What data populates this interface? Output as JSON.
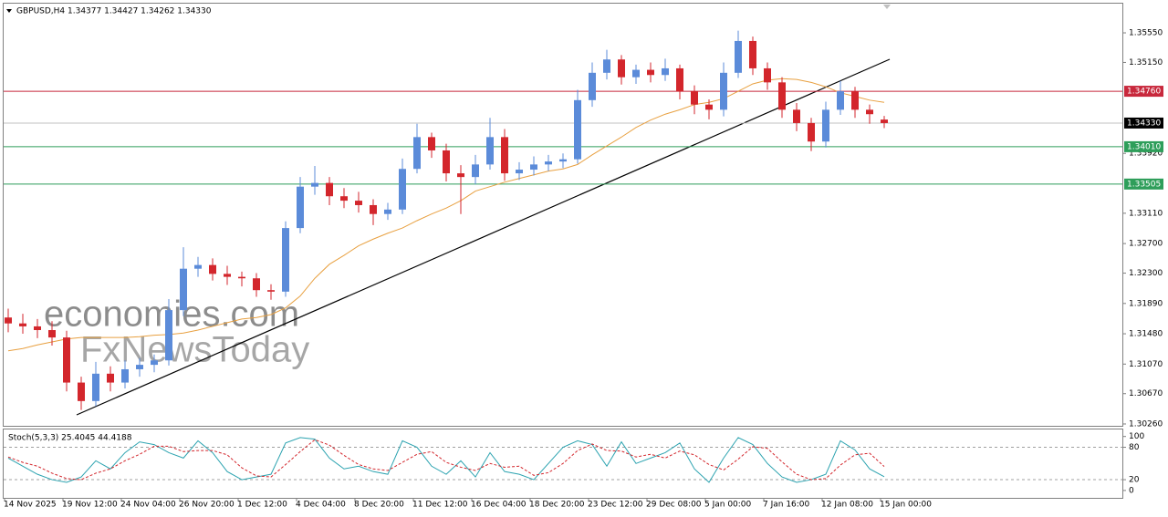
{
  "chart_data": [
    {
      "type": "candlestick",
      "title": "GBPUSD,H4  1.34377 1.34427 1.34262 1.34330",
      "watermark": [
        "economies.com",
        "FxNewsToday"
      ],
      "categories": [
        "14 Nov 2025",
        null,
        null,
        null,
        "19 Nov 12:00",
        null,
        null,
        null,
        "24 Nov 04:00",
        null,
        null,
        null,
        "26 Nov 20:00",
        null,
        null,
        null,
        "1 Dec 12:00",
        null,
        null,
        null,
        "4 Dec 04:00",
        null,
        null,
        null,
        "8 Dec 20:00",
        null,
        null,
        null,
        "11 Dec 12:00",
        null,
        null,
        null,
        "16 Dec 04:00",
        null,
        null,
        null,
        "18 Dec 20:00",
        null,
        null,
        null,
        "23 Dec 12:00",
        null,
        null,
        null,
        "29 Dec 08:00",
        null,
        null,
        null,
        "5 Jan 00:00",
        null,
        null,
        null,
        "7 Jan 16:00",
        null,
        null,
        null,
        "12 Jan 08:00",
        null,
        null,
        null,
        "15 Jan 00:00"
      ],
      "open": [
        1.317,
        1.3162,
        1.3158,
        1.3153,
        1.3143,
        1.3082,
        1.3057,
        1.3094,
        1.3082,
        1.31,
        1.3106,
        1.3112,
        1.318,
        1.3236,
        1.3241,
        1.3229,
        1.3225,
        1.3223,
        1.3207,
        1.3205,
        1.3291,
        1.3347,
        1.3352,
        1.3334,
        1.3328,
        1.3322,
        1.331,
        1.3316,
        1.3371,
        1.3414,
        1.3396,
        1.3365,
        1.336,
        1.3377,
        1.3414,
        1.3365,
        1.337,
        1.3377,
        1.3381,
        1.3384,
        1.3464,
        1.3501,
        1.3519,
        1.3495,
        1.3505,
        1.3498,
        1.3507,
        1.3476,
        1.3458,
        1.3451,
        1.3501,
        1.3544,
        1.3507,
        1.3488,
        1.3451,
        1.3433,
        1.3408,
        1.3451,
        1.3476,
        1.3451,
        1.34377
      ],
      "high": [
        1.3182,
        1.3175,
        1.3168,
        1.3165,
        1.3152,
        1.309,
        1.311,
        1.3104,
        1.3112,
        1.3115,
        1.312,
        1.3195,
        1.3265,
        1.3252,
        1.325,
        1.324,
        1.3232,
        1.323,
        1.3215,
        1.33,
        1.336,
        1.3375,
        1.336,
        1.3345,
        1.334,
        1.333,
        1.3325,
        1.3385,
        1.3432,
        1.342,
        1.3405,
        1.3376,
        1.339,
        1.344,
        1.3425,
        1.338,
        1.3388,
        1.339,
        1.3392,
        1.3478,
        1.3515,
        1.3532,
        1.3525,
        1.3512,
        1.3515,
        1.352,
        1.3512,
        1.3484,
        1.3465,
        1.3515,
        1.3558,
        1.355,
        1.3515,
        1.3495,
        1.346,
        1.344,
        1.3462,
        1.349,
        1.3482,
        1.3458,
        1.34427
      ],
      "low": [
        1.315,
        1.3148,
        1.3142,
        1.3132,
        1.307,
        1.3045,
        1.305,
        1.307,
        1.3074,
        1.309,
        1.3096,
        1.3105,
        1.3172,
        1.3225,
        1.322,
        1.3214,
        1.3212,
        1.3198,
        1.3194,
        1.3198,
        1.3284,
        1.3336,
        1.3322,
        1.3318,
        1.3312,
        1.3295,
        1.3302,
        1.331,
        1.3365,
        1.3386,
        1.3354,
        1.331,
        1.335,
        1.337,
        1.3355,
        1.3356,
        1.3362,
        1.3368,
        1.3372,
        1.3378,
        1.3455,
        1.3492,
        1.3485,
        1.3486,
        1.3488,
        1.349,
        1.3465,
        1.3445,
        1.3438,
        1.3442,
        1.3494,
        1.3498,
        1.3478,
        1.344,
        1.3422,
        1.3395,
        1.34,
        1.3444,
        1.344,
        1.3432,
        1.34262
      ],
      "close": [
        1.3162,
        1.3158,
        1.3153,
        1.3143,
        1.3082,
        1.3057,
        1.3094,
        1.3082,
        1.31,
        1.3106,
        1.3112,
        1.318,
        1.3236,
        1.3241,
        1.3229,
        1.3225,
        1.3223,
        1.3207,
        1.3205,
        1.3291,
        1.3347,
        1.3352,
        1.3334,
        1.3328,
        1.3322,
        1.331,
        1.3316,
        1.3371,
        1.3414,
        1.3396,
        1.3365,
        1.336,
        1.3377,
        1.3414,
        1.3365,
        1.337,
        1.3377,
        1.3381,
        1.3384,
        1.3464,
        1.3501,
        1.3519,
        1.3495,
        1.3505,
        1.3498,
        1.3507,
        1.3476,
        1.3458,
        1.3451,
        1.3501,
        1.3544,
        1.3507,
        1.3488,
        1.3451,
        1.3433,
        1.3408,
        1.3451,
        1.3476,
        1.3451,
        1.3445,
        1.3433
      ],
      "up_color": "#5b8bd9",
      "down_color": "#d3262c",
      "ma": {
        "color": "#e8a040",
        "values": [
          1.3125,
          1.3128,
          1.3133,
          1.3137,
          1.3141,
          1.3143,
          1.3143,
          1.3143,
          1.3143,
          1.3144,
          1.3146,
          1.3147,
          1.3149,
          1.3153,
          1.3158,
          1.3163,
          1.3168,
          1.317,
          1.3174,
          1.3183,
          1.3199,
          1.3223,
          1.3242,
          1.3254,
          1.3267,
          1.3276,
          1.3284,
          1.3291,
          1.3301,
          1.331,
          1.3318,
          1.3328,
          1.3341,
          1.3347,
          1.3353,
          1.3358,
          1.3363,
          1.3368,
          1.3371,
          1.3377,
          1.339,
          1.3402,
          1.3414,
          1.3427,
          1.3437,
          1.3445,
          1.3451,
          1.3458,
          1.3461,
          1.3466,
          1.3476,
          1.3486,
          1.3491,
          1.3493,
          1.3492,
          1.3488,
          1.3482,
          1.3474,
          1.3469,
          1.3464,
          1.3461
        ]
      },
      "levels": [
        {
          "value": 1.3476,
          "label": "1.34760",
          "color": "#c8283c",
          "text_color": "#ffffff"
        },
        {
          "value": 1.3433,
          "label": "1.34330",
          "color": "#000000",
          "text_color": "#ffffff",
          "line_color": "#c0c0c0"
        },
        {
          "value": 1.3401,
          "label": "1.34010",
          "color": "#2e9e5a",
          "text_color": "#ffffff"
        },
        {
          "value": 1.33505,
          "label": "1.33505",
          "color": "#2e9e5a",
          "text_color": "#ffffff"
        }
      ],
      "ylim": [
        1.30235,
        1.35945
      ],
      "yticks": [
        {
          "value": 1.3555,
          "label": "1.35550"
        },
        {
          "value": 1.3515,
          "label": "1.35150"
        },
        {
          "value": 1.3392,
          "label": "1.33920"
        },
        {
          "value": 1.3311,
          "label": "1.33110"
        },
        {
          "value": 1.327,
          "label": "1.32700"
        },
        {
          "value": 1.323,
          "label": "1.32300"
        },
        {
          "value": 1.3189,
          "label": "1.31890"
        },
        {
          "value": 1.3148,
          "label": "1.31480"
        },
        {
          "value": 1.3107,
          "label": "1.31070"
        },
        {
          "value": 1.3067,
          "label": "1.30670"
        },
        {
          "value": 1.3026,
          "label": "1.30260"
        }
      ]
    },
    {
      "type": "stochastic",
      "title": "Stoch(5,3,3) 25.4045 44.4188",
      "ylim": [
        -12,
        113
      ],
      "yticks": [
        100,
        80,
        20,
        0
      ],
      "levels": [
        80,
        20
      ],
      "series": [
        {
          "color": "#2ca3b0",
          "dash": false,
          "values": [
            60,
            45,
            30,
            20,
            15,
            25,
            55,
            40,
            70,
            90,
            85,
            70,
            60,
            92,
            70,
            35,
            20,
            25,
            30,
            88,
            98,
            95,
            60,
            40,
            45,
            35,
            30,
            92,
            80,
            45,
            30,
            55,
            25,
            70,
            35,
            30,
            20,
            50,
            80,
            92,
            85,
            45,
            90,
            50,
            60,
            70,
            88,
            40,
            15,
            60,
            98,
            85,
            50,
            25,
            15,
            20,
            30,
            92,
            75,
            40,
            25.4045
          ]
        },
        {
          "color": "#d3262c",
          "dash": true,
          "values": [
            62,
            52,
            45,
            32,
            22,
            20,
            32,
            40,
            55,
            67,
            82,
            82,
            72,
            74,
            74,
            66,
            42,
            27,
            25,
            48,
            72,
            94,
            84,
            65,
            48,
            40,
            37,
            52,
            67,
            72,
            52,
            43,
            37,
            50,
            43,
            45,
            28,
            33,
            50,
            74,
            86,
            74,
            73,
            62,
            67,
            60,
            73,
            66,
            48,
            38,
            58,
            81,
            78,
            53,
            30,
            20,
            22,
            47,
            66,
            69,
            44.4188
          ]
        }
      ]
    }
  ]
}
